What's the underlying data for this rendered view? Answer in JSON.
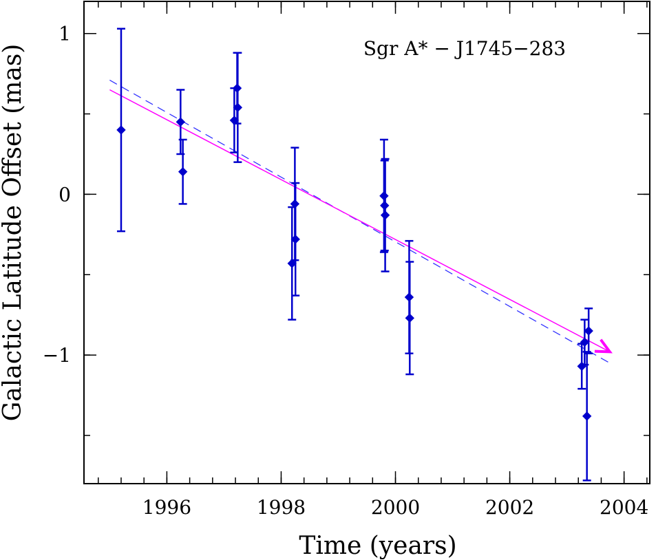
{
  "chart_data": {
    "type": "scatter",
    "title": "Sgr A* − J1745−283",
    "xlabel": "Time (years)",
    "ylabel": "Galactic Latitude Offset (mas)",
    "xlim": [
      1994.55,
      2004.45
    ],
    "ylim": [
      -1.8,
      1.2
    ],
    "x_ticks": [
      1996,
      1998,
      2000,
      2002,
      2004
    ],
    "x_tick_labels": [
      "1996",
      "1998",
      "2000",
      "2002",
      "2004"
    ],
    "y_ticks": [
      -1,
      0,
      1
    ],
    "y_tick_labels": [
      "−1",
      "0",
      "1"
    ],
    "x_minor_step": 0.4,
    "y_minor_step": 0.5,
    "grid": false,
    "colors": {
      "points": "#0000cc",
      "fit_line": "#ff00ff",
      "model_line": "#3333ff",
      "frame": "#000000"
    },
    "points": [
      {
        "x": 1995.2,
        "y": 0.4,
        "err": 0.63
      },
      {
        "x": 1996.24,
        "y": 0.45,
        "err": 0.2
      },
      {
        "x": 1996.28,
        "y": 0.14,
        "err": 0.2
      },
      {
        "x": 1997.18,
        "y": 0.46,
        "err": 0.2
      },
      {
        "x": 1997.23,
        "y": 0.66,
        "err": 0.22
      },
      {
        "x": 1997.24,
        "y": 0.54,
        "err": 0.34
      },
      {
        "x": 1998.19,
        "y": -0.43,
        "err": 0.35
      },
      {
        "x": 1998.24,
        "y": -0.06,
        "err": 0.35
      },
      {
        "x": 1998.25,
        "y": -0.28,
        "err": 0.35
      },
      {
        "x": 1999.8,
        "y": -0.01,
        "err": 0.35
      },
      {
        "x": 1999.81,
        "y": -0.07,
        "err": 0.28
      },
      {
        "x": 1999.82,
        "y": -0.13,
        "err": 0.35
      },
      {
        "x": 2000.24,
        "y": -0.64,
        "err": 0.35
      },
      {
        "x": 2000.25,
        "y": -0.77,
        "err": 0.35
      },
      {
        "x": 2003.26,
        "y": -1.07,
        "err": 0.14
      },
      {
        "x": 2003.31,
        "y": -0.92,
        "err": 0.14
      },
      {
        "x": 2003.35,
        "y": -1.38,
        "err": 0.4
      },
      {
        "x": 2003.38,
        "y": -0.85,
        "err": 0.14
      }
    ],
    "fit_line": {
      "x0": 1995.0,
      "y0": 0.65,
      "x1": 2003.75,
      "y1": -0.98,
      "arrow": true
    },
    "model_line": {
      "x0": 1995.0,
      "y0": 0.71,
      "x1": 2003.8,
      "y1": -1.06,
      "dashed": true
    }
  }
}
